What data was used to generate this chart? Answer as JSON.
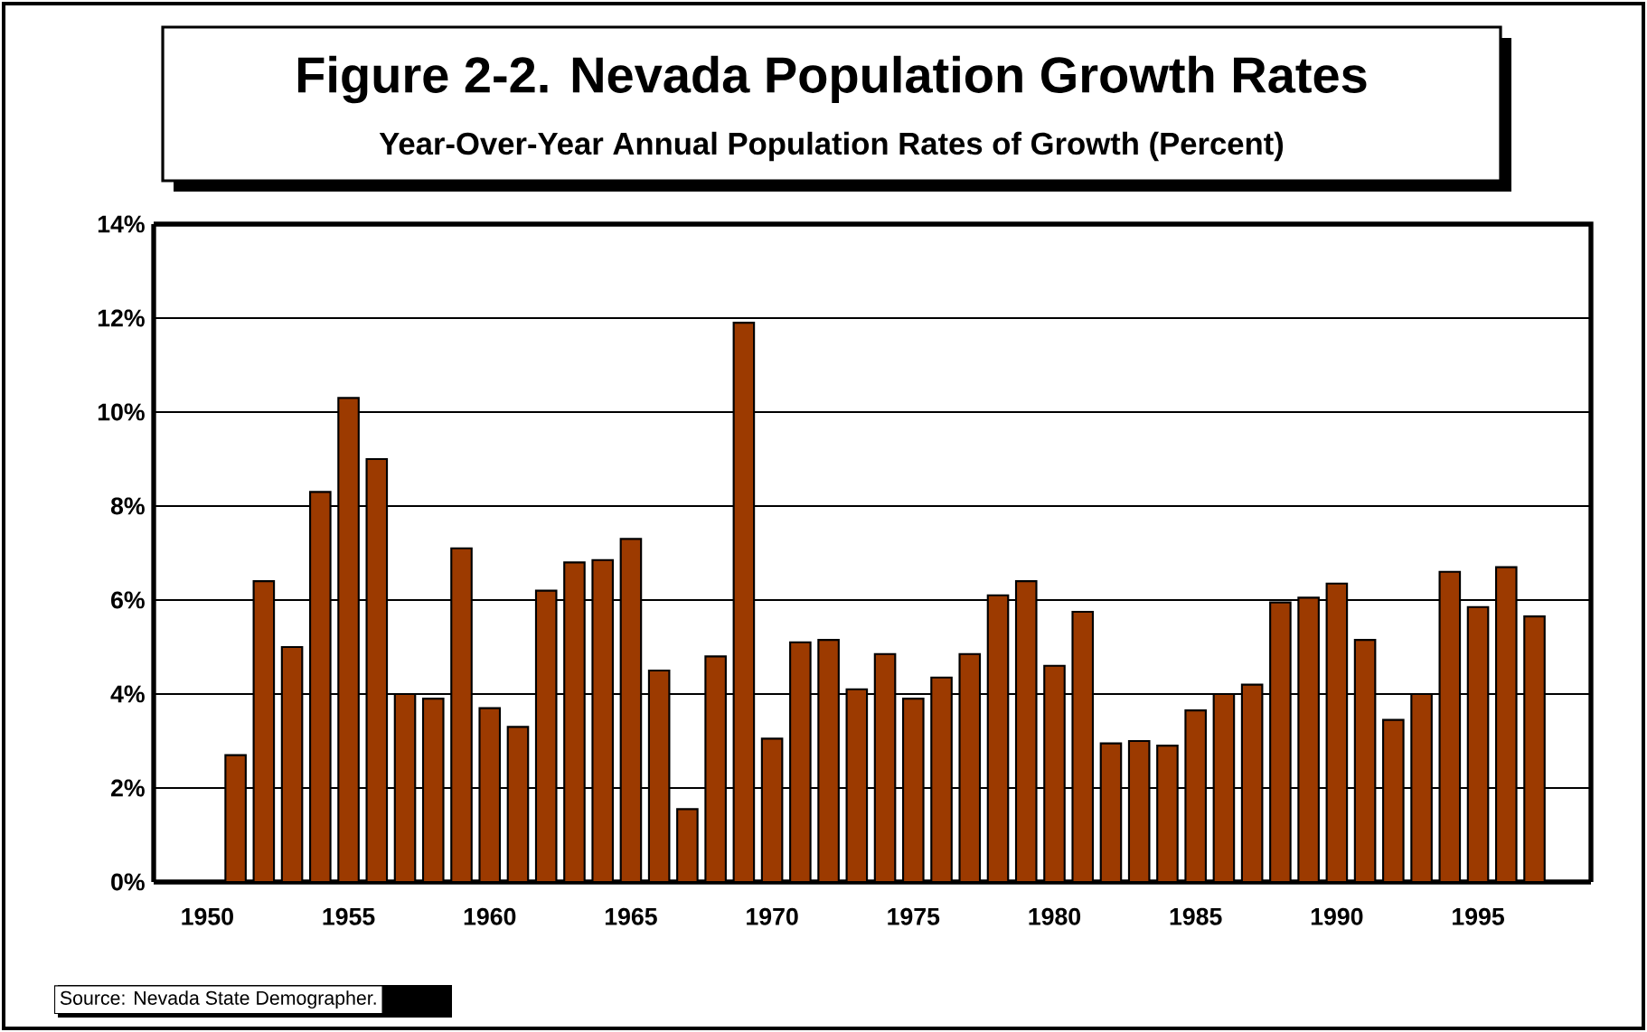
{
  "chart_data": {
    "type": "bar",
    "title": "Figure 2-2. Nevada Population Growth Rates",
    "subtitle": "Year-Over-Year Annual Population Rates of Growth (Percent)",
    "categories": [
      "1950",
      null,
      null,
      null,
      null,
      "1955",
      null,
      null,
      null,
      null,
      "1960",
      null,
      null,
      null,
      null,
      "1965",
      null,
      null,
      null,
      null,
      "1970",
      null,
      null,
      null,
      null,
      "1975",
      null,
      null,
      null,
      null,
      "1980",
      null,
      null,
      null,
      null,
      "1985",
      null,
      null,
      null,
      null,
      "1990",
      null,
      null,
      null,
      null,
      "1995",
      null,
      null
    ],
    "values": [
      null,
      2.7,
      6.4,
      5.0,
      8.3,
      10.3,
      9.0,
      4.0,
      3.9,
      7.1,
      3.7,
      3.3,
      6.2,
      6.8,
      6.85,
      7.3,
      4.5,
      1.55,
      4.8,
      11.9,
      3.05,
      5.1,
      5.15,
      4.1,
      4.85,
      3.9,
      4.35,
      4.85,
      6.1,
      6.4,
      4.6,
      5.75,
      2.95,
      3.0,
      2.9,
      3.65,
      4.0,
      4.2,
      5.95,
      6.05,
      6.35,
      5.15,
      3.45,
      4.0,
      6.6,
      5.85,
      6.7,
      5.65
    ],
    "color": "#9c3a00",
    "ylim": [
      0,
      14
    ],
    "yticks": [
      {
        "value": 0,
        "label": "0%"
      },
      {
        "value": 2,
        "label": "2%"
      },
      {
        "value": 4,
        "label": "4%"
      },
      {
        "value": 6,
        "label": "6%"
      },
      {
        "value": 8,
        "label": "8%"
      },
      {
        "value": 10,
        "label": "10%"
      },
      {
        "value": 12,
        "label": "12%"
      },
      {
        "value": 14,
        "label": "14%"
      }
    ],
    "grid": "y",
    "annotations": [
      "Source:  Nevada State Demographer."
    ]
  }
}
